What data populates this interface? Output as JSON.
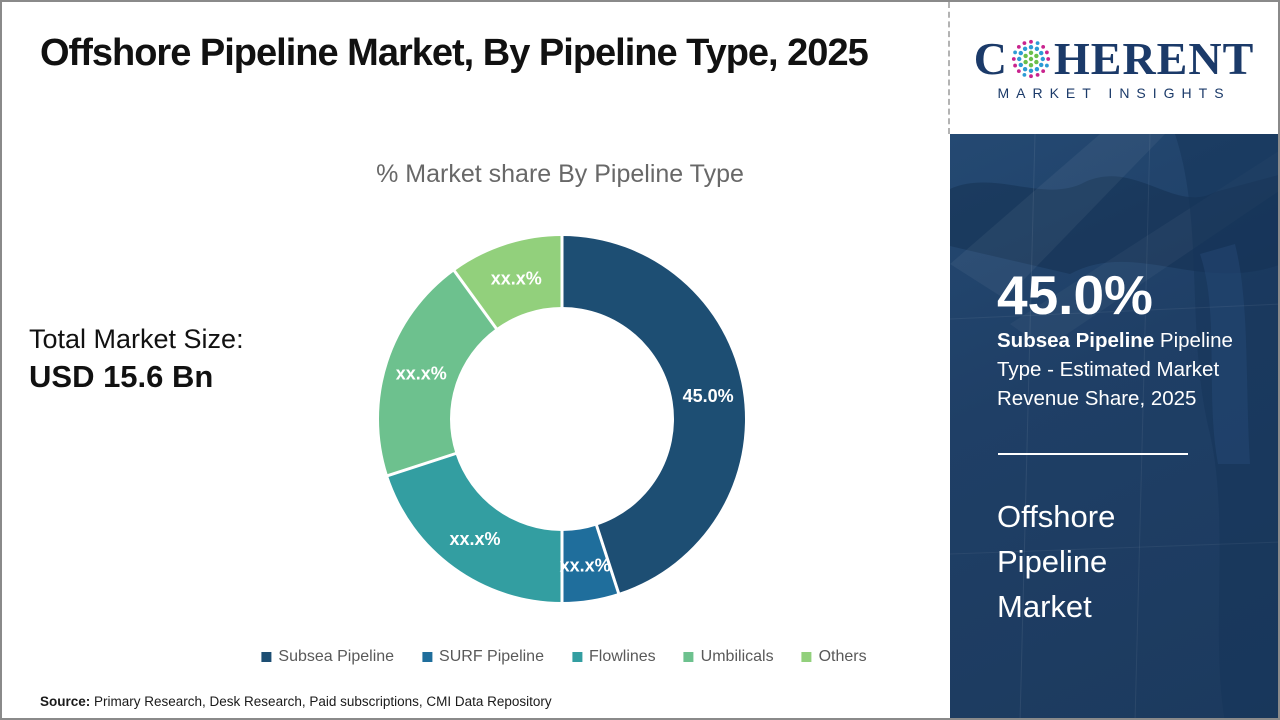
{
  "header": {
    "title": "Offshore Pipeline Market, By Pipeline Type, 2025"
  },
  "logo": {
    "word_start": "C",
    "word_end": "HERENT",
    "tagline": "MARKET INSIGHTS",
    "navy": "#1b3a69",
    "globe_colors": {
      "inner": "#6abf4b",
      "mid": "#2d9bd5",
      "outer": "#c9248e"
    }
  },
  "left_stat": {
    "label": "Total Market Size:",
    "value": "USD 15.6 Bn"
  },
  "chart_data": {
    "type": "pie",
    "subtype": "donut",
    "title": "% Market share By Pipeline Type",
    "start_angle": "top, clockwise",
    "categories": [
      "Subsea Pipeline",
      "SURF Pipeline",
      "Flowlines",
      "Umbilicals",
      "Others"
    ],
    "values": [
      45,
      5,
      20,
      20,
      10
    ],
    "slice_labels": [
      "45.0%",
      "xx.x%",
      "xx.x%",
      "xx.x%",
      "xx.x%"
    ],
    "colors": [
      "#1d4e73",
      "#1f6e9c",
      "#339ea1",
      "#6dc18e",
      "#92d07c"
    ],
    "legend_position": "bottom"
  },
  "sidebar": {
    "stat_value": "45.0%",
    "stat_bold": "Subsea Pipeline",
    "stat_desc": "  Pipeline Type - Estimated Market Revenue Share, 2025",
    "market_name": "Offshore Pipeline Market"
  },
  "footer": {
    "source_label": "Source:",
    "source_text": " Primary Research, Desk Research, Paid subscriptions, CMI Data Repository"
  }
}
